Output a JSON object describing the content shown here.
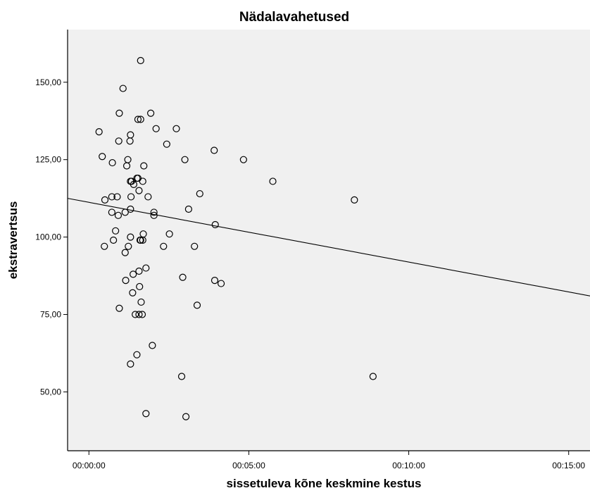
{
  "chart_data": {
    "type": "scatter",
    "title": "Nädalavahetused",
    "xlabel": "sissetuleva kõne keskmine kestus",
    "ylabel": "ekstravertsus",
    "x_unit": "seconds",
    "xlim": [
      -40,
      940
    ],
    "ylim": [
      31,
      167
    ],
    "x_ticks": [
      {
        "value": 0,
        "label": "00:00:00"
      },
      {
        "value": 300,
        "label": "00:05:00"
      },
      {
        "value": 600,
        "label": "00:10:00"
      },
      {
        "value": 900,
        "label": "00:15:00"
      }
    ],
    "y_ticks": [
      {
        "value": 50,
        "label": "50,00"
      },
      {
        "value": 75,
        "label": "75,00"
      },
      {
        "value": 100,
        "label": "100,00"
      },
      {
        "value": 125,
        "label": "125,00"
      },
      {
        "value": 150,
        "label": "150,00"
      }
    ],
    "grid": false,
    "colors": {
      "plot_background": "#f0f0f0",
      "marker": "#000000",
      "fit_line": "#000000"
    },
    "series": [
      {
        "marker": "open-circle",
        "points": [
          [
            97,
            157
          ],
          [
            64,
            148
          ],
          [
            57,
            140
          ],
          [
            116,
            140
          ],
          [
            92,
            138
          ],
          [
            97,
            138
          ],
          [
            19,
            134
          ],
          [
            78,
            133
          ],
          [
            126,
            135
          ],
          [
            164,
            135
          ],
          [
            56,
            131
          ],
          [
            77,
            131
          ],
          [
            146,
            130
          ],
          [
            25,
            126
          ],
          [
            73,
            125
          ],
          [
            71,
            123
          ],
          [
            103,
            123
          ],
          [
            44,
            124
          ],
          [
            180,
            125
          ],
          [
            235,
            128
          ],
          [
            290,
            125
          ],
          [
            345,
            118
          ],
          [
            92,
            119
          ],
          [
            78,
            118
          ],
          [
            84,
            117
          ],
          [
            80,
            118
          ],
          [
            90,
            119
          ],
          [
            101,
            118
          ],
          [
            94,
            115
          ],
          [
            30,
            112
          ],
          [
            43,
            113
          ],
          [
            53,
            113
          ],
          [
            111,
            113
          ],
          [
            208,
            114
          ],
          [
            79,
            113
          ],
          [
            43,
            108
          ],
          [
            55,
            107
          ],
          [
            68,
            108
          ],
          [
            78,
            109
          ],
          [
            122,
            108
          ],
          [
            122,
            107
          ],
          [
            187,
            109
          ],
          [
            237,
            104
          ],
          [
            50,
            102
          ],
          [
            46,
            99
          ],
          [
            78,
            100
          ],
          [
            96,
            99
          ],
          [
            97,
            99
          ],
          [
            102,
            101
          ],
          [
            101,
            99
          ],
          [
            151,
            101
          ],
          [
            140,
            97
          ],
          [
            29,
            97
          ],
          [
            74,
            97
          ],
          [
            68,
            95
          ],
          [
            198,
            97
          ],
          [
            498,
            112
          ],
          [
            94,
            89
          ],
          [
            107,
            90
          ],
          [
            69,
            86
          ],
          [
            83,
            88
          ],
          [
            176,
            87
          ],
          [
            95,
            84
          ],
          [
            236,
            86
          ],
          [
            248,
            85
          ],
          [
            82,
            82
          ],
          [
            57,
            77
          ],
          [
            98,
            79
          ],
          [
            87,
            75
          ],
          [
            94,
            75
          ],
          [
            100,
            75
          ],
          [
            203,
            78
          ],
          [
            119,
            65
          ],
          [
            90,
            62
          ],
          [
            78,
            59
          ],
          [
            174,
            55
          ],
          [
            533,
            55
          ],
          [
            107,
            43
          ],
          [
            182,
            42
          ]
        ]
      }
    ],
    "fit_line": {
      "start": [
        -40,
        112.5
      ],
      "end": [
        940,
        81
      ]
    }
  }
}
